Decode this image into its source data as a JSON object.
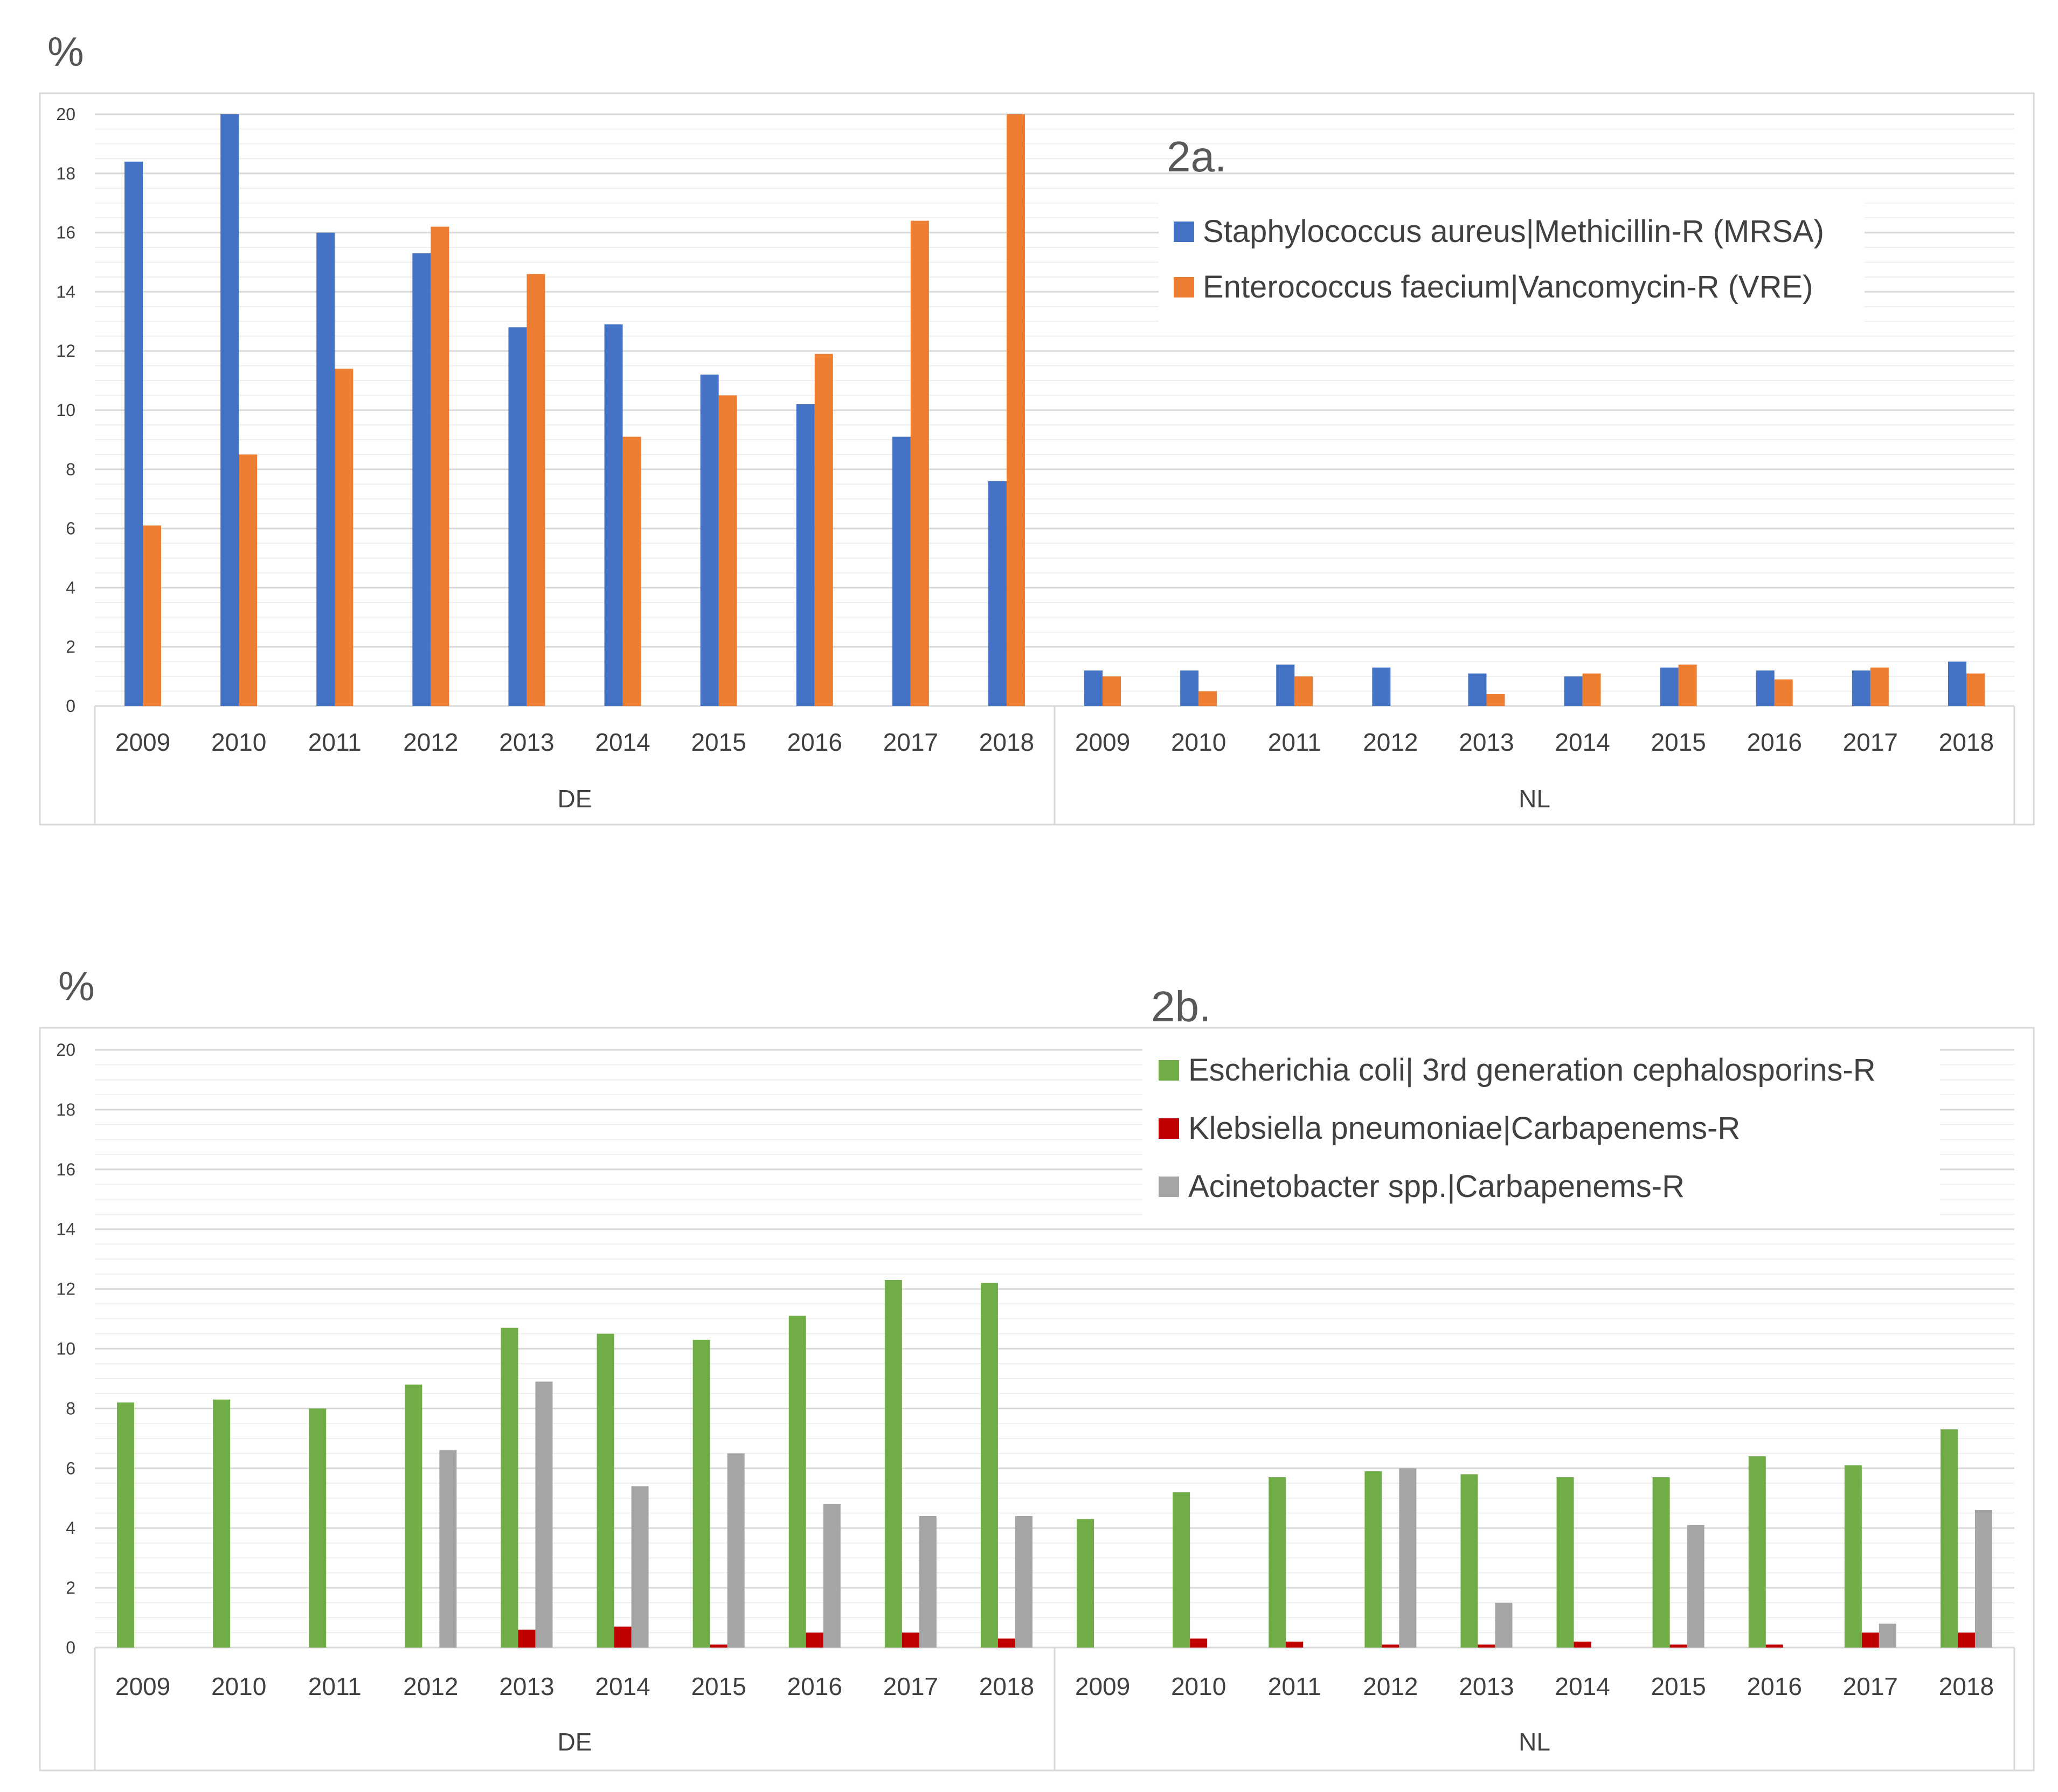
{
  "chart_data": [
    {
      "type": "bar",
      "label": "2a.",
      "unit": "%",
      "ylim": [
        0,
        20
      ],
      "yticks": [
        "0",
        "2",
        "4",
        "6",
        "8",
        "10",
        "12",
        "14",
        "16",
        "18",
        "20"
      ],
      "groups": [
        "DE",
        "NL"
      ],
      "years": [
        "2009",
        "2010",
        "2011",
        "2012",
        "2013",
        "2014",
        "2015",
        "2016",
        "2017",
        "2018"
      ],
      "series": [
        {
          "name": "Staphylococcus aureus|Methicillin-R (MRSA)",
          "color": "#4472C4",
          "values": {
            "DE": [
              18.4,
              20.0,
              16.0,
              15.3,
              12.8,
              12.9,
              11.2,
              10.2,
              9.1,
              7.6
            ],
            "NL": [
              1.2,
              1.2,
              1.4,
              1.3,
              1.1,
              1.0,
              1.3,
              1.2,
              1.2,
              1.5
            ]
          }
        },
        {
          "name": "Enterococcus faecium|Vancomycin-R (VRE)",
          "color": "#ED7D31",
          "values": {
            "DE": [
              6.1,
              8.5,
              11.4,
              16.2,
              14.6,
              9.1,
              10.5,
              11.9,
              16.4,
              20.0
            ],
            "NL": [
              1.0,
              0.5,
              1.0,
              0.0,
              0.4,
              1.1,
              1.4,
              0.9,
              1.3,
              1.1
            ]
          }
        }
      ]
    },
    {
      "type": "bar",
      "label": "2b.",
      "unit": "%",
      "ylim": [
        0,
        20
      ],
      "yticks": [
        "0",
        "2",
        "4",
        "6",
        "8",
        "10",
        "12",
        "14",
        "16",
        "18",
        "20"
      ],
      "groups": [
        "DE",
        "NL"
      ],
      "years": [
        "2009",
        "2010",
        "2011",
        "2012",
        "2013",
        "2014",
        "2015",
        "2016",
        "2017",
        "2018"
      ],
      "series": [
        {
          "name": "Escherichia coli| 3rd generation cephalosporins-R",
          "color": "#70AD47",
          "values": {
            "DE": [
              8.2,
              8.3,
              8.0,
              8.8,
              10.7,
              10.5,
              10.3,
              11.1,
              12.3,
              12.2
            ],
            "NL": [
              4.3,
              5.2,
              5.7,
              5.9,
              5.8,
              5.7,
              5.7,
              6.4,
              6.1,
              7.3
            ]
          }
        },
        {
          "name": "Klebsiella pneumoniae|Carbapenems-R",
          "color": "#C00000",
          "values": {
            "DE": [
              0.0,
              0.0,
              0.0,
              0.0,
              0.6,
              0.7,
              0.1,
              0.5,
              0.5,
              0.3
            ],
            "NL": [
              0.0,
              0.3,
              0.2,
              0.1,
              0.1,
              0.2,
              0.1,
              0.1,
              0.5,
              0.5
            ]
          }
        },
        {
          "name": "Acinetobacter spp.|Carbapenems-R",
          "color": "#A5A5A5",
          "values": {
            "DE": [
              0.0,
              0.0,
              0.0,
              6.6,
              8.9,
              5.4,
              6.5,
              4.8,
              4.4,
              4.4
            ],
            "NL": [
              0.0,
              0.0,
              0.0,
              6.0,
              1.5,
              0.0,
              4.1,
              0.0,
              0.8,
              4.6
            ]
          }
        }
      ]
    }
  ]
}
